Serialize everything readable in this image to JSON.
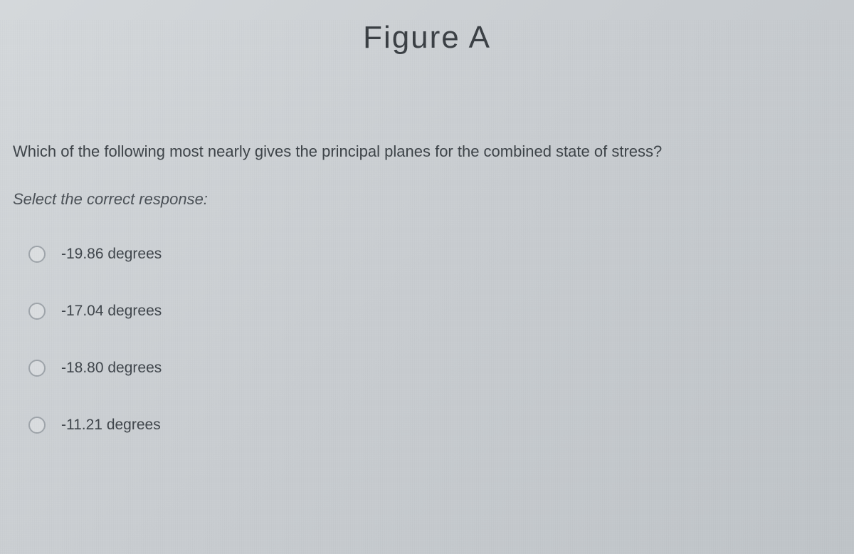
{
  "figure_label": "Figure A",
  "question": "Which of the following most nearly gives the principal planes for the combined state of stress?",
  "instruction": "Select the correct response:",
  "options": [
    {
      "label": "-19.86 degrees"
    },
    {
      "label": "-17.04 degrees"
    },
    {
      "label": "-18.80 degrees"
    },
    {
      "label": "-11.21 degrees"
    }
  ],
  "colors": {
    "background_start": "#d4d8db",
    "background_end": "#bfc4c8",
    "text_primary": "#3d4348",
    "radio_border": "#9ea4aa"
  },
  "typography": {
    "title_fontsize": 44,
    "body_fontsize": 22,
    "option_fontsize": 21,
    "title_weight": 300,
    "body_weight": 300
  }
}
